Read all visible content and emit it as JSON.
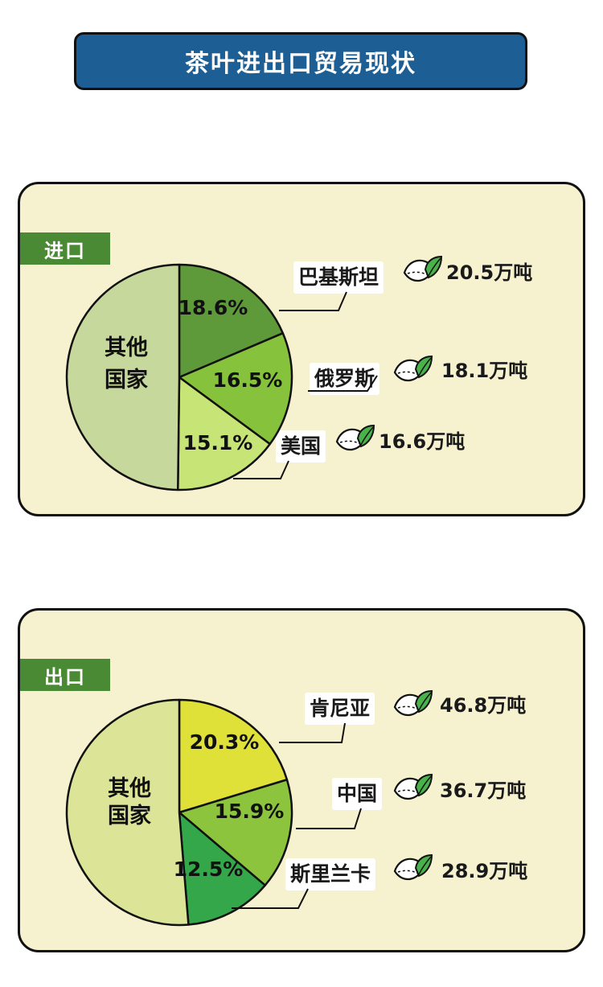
{
  "title": "茶叶进出口贸易现状",
  "colors": {
    "title_bg": "#1d5f95",
    "panel_bg": "#f6f1cf",
    "tag_bg": "#4a8a34"
  },
  "chart_data": [
    {
      "type": "pie",
      "tag": "进口",
      "other_label": [
        "其他",
        "国家"
      ],
      "slices": [
        {
          "name": "巴基斯坦",
          "percent": "18.6%",
          "value": 18.6,
          "amount": "20.5万吨",
          "color": "#5e9a3a"
        },
        {
          "name": "俄罗斯",
          "percent": "16.5%",
          "value": 16.5,
          "amount": "18.1万吨",
          "color": "#86c23c"
        },
        {
          "name": "美国",
          "percent": "15.1%",
          "value": 15.1,
          "amount": "16.6万吨",
          "color": "#c7e477"
        },
        {
          "name": "其他国家",
          "value": 49.8,
          "color": "#c6d89b"
        }
      ]
    },
    {
      "type": "pie",
      "tag": "出口",
      "other_label": [
        "其他",
        "国家"
      ],
      "slices": [
        {
          "name": "肯尼亚",
          "percent": "20.3%",
          "value": 20.3,
          "amount": "46.8万吨",
          "color": "#dfe038"
        },
        {
          "name": "中国",
          "percent": "15.9%",
          "value": 15.9,
          "amount": "36.7万吨",
          "color": "#8cc43e"
        },
        {
          "name": "斯里兰卡",
          "percent": "12.5%",
          "value": 12.5,
          "amount": "28.9万吨",
          "color": "#34a74a"
        },
        {
          "name": "其他国家",
          "value": 51.3,
          "color": "#dce597"
        }
      ]
    }
  ]
}
